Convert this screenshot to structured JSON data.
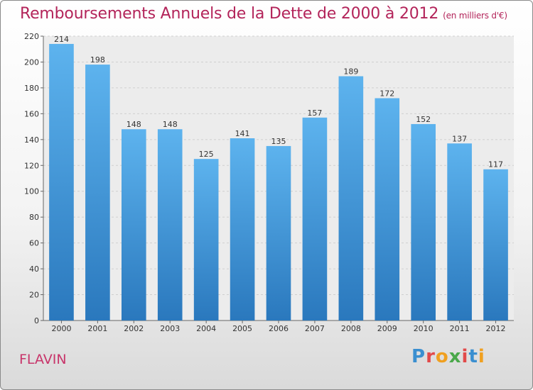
{
  "chart_data": {
    "type": "bar",
    "title": "Remboursements Annuels de la Dette de 2000 à 2012",
    "subtitle": "(en milliers d'€)",
    "categories": [
      "2000",
      "2001",
      "2002",
      "2003",
      "2004",
      "2005",
      "2006",
      "2007",
      "2008",
      "2009",
      "2010",
      "2011",
      "2012"
    ],
    "values": [
      214,
      198,
      148,
      148,
      125,
      141,
      135,
      157,
      189,
      172,
      152,
      137,
      117
    ],
    "ylim": [
      0,
      220
    ],
    "yticks": [
      0,
      20,
      40,
      60,
      80,
      100,
      120,
      140,
      160,
      180,
      200,
      220
    ],
    "grid": true,
    "bar_color": "#3b8fd6"
  },
  "footer": {
    "town": "FLAVIN",
    "logo_letters": [
      "P",
      "r",
      "o",
      "x",
      "i",
      "t",
      "i"
    ]
  }
}
